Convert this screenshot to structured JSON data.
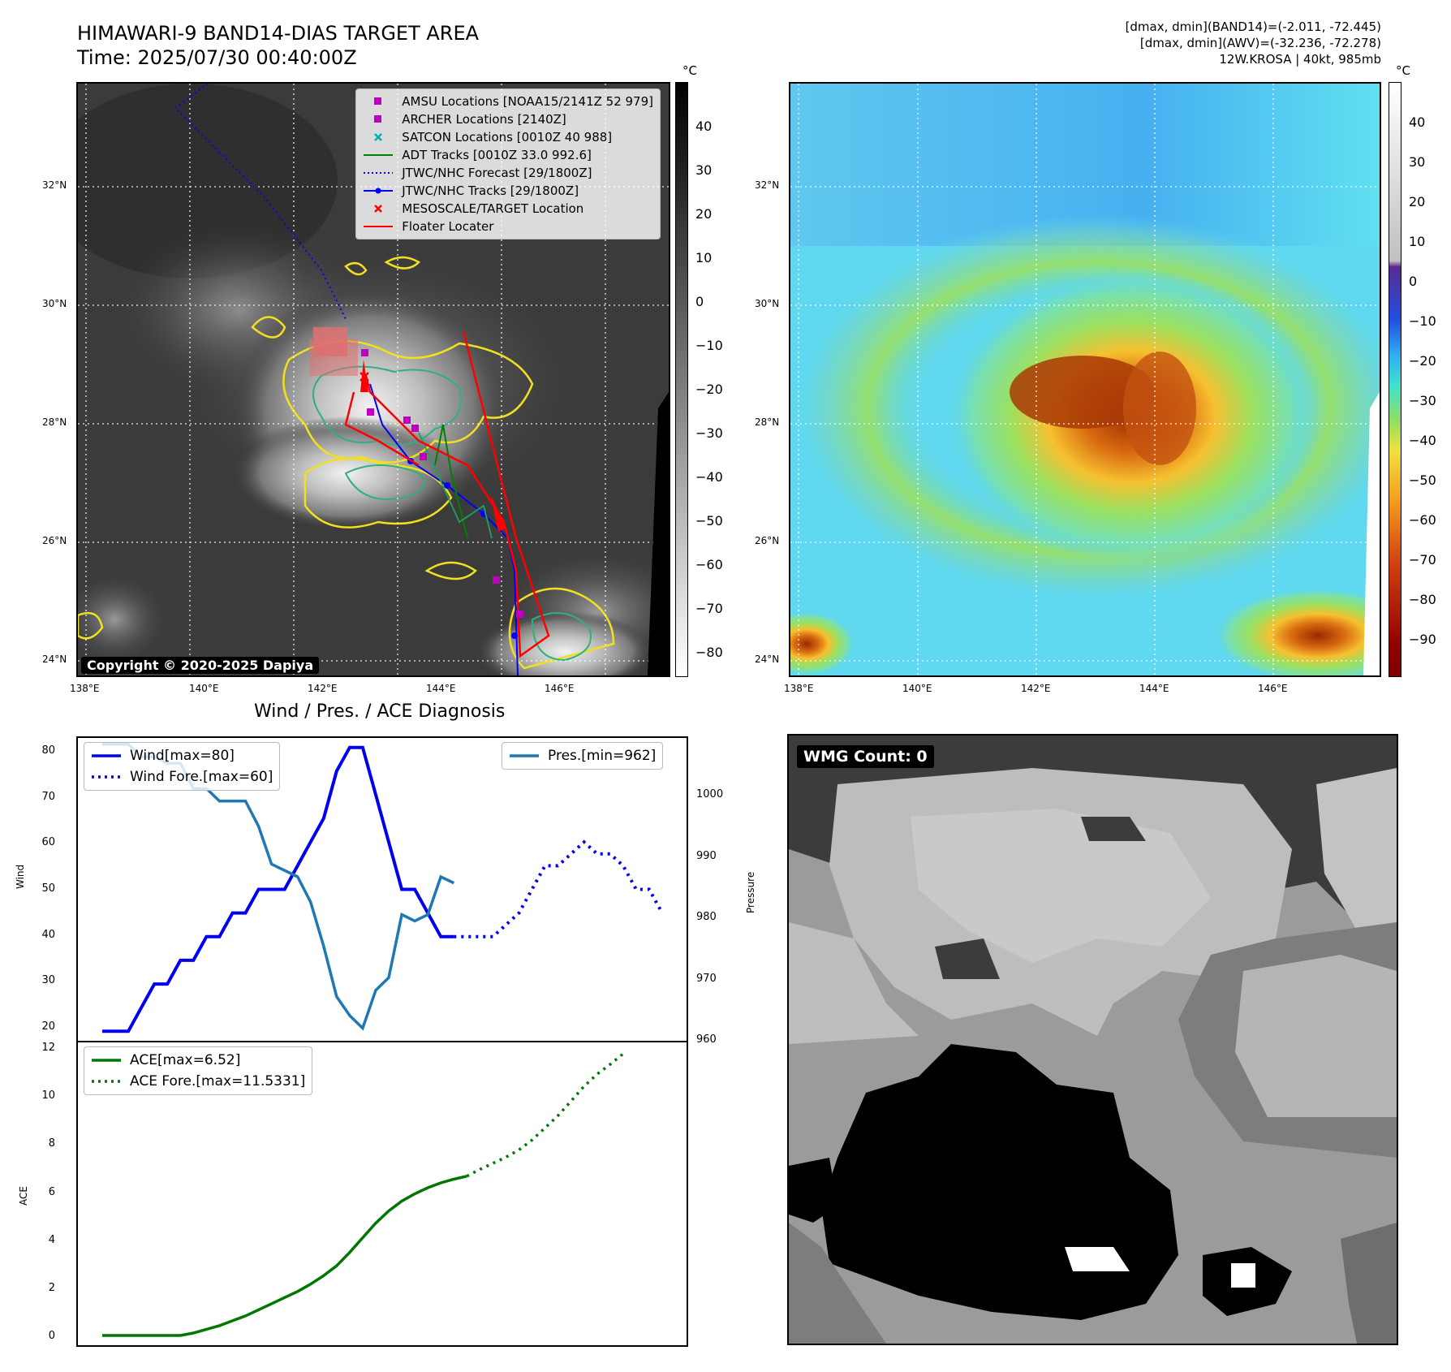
{
  "header": {
    "title_line1": "HIMAWARI-9 BAND14-DIAS TARGET AREA",
    "title_line2": "Time: 2025/07/30 00:40:00Z",
    "info_line1": "[dmax, dmin](BAND14)=(-2.011, -72.445)",
    "info_line2": "[dmax, dmin](AWV)=(-32.236, -72.278)",
    "info_line3": "12W.KROSA | 40kt, 985mb"
  },
  "map": {
    "lon_ticks": [
      "138°E",
      "140°E",
      "142°E",
      "144°E",
      "146°E"
    ],
    "lat_ticks": [
      "32°N",
      "30°N",
      "28°N",
      "26°N",
      "24°N"
    ],
    "copyright": "Copyright © 2020-2025 Dapiya",
    "legend": [
      {
        "label": "AMSU Locations [NOAA15/2141Z 52 979]",
        "symbol": "square",
        "color": "#c000c0"
      },
      {
        "label": "ARCHER Locations [2140Z]",
        "symbol": "square",
        "color": "#c000c0"
      },
      {
        "label": "SATCON Locations [0010Z 40 988]",
        "symbol": "x",
        "color": "#00b0b0"
      },
      {
        "label": "ADT Tracks [0010Z 33.0 992.6]",
        "symbol": "line",
        "color": "#008000"
      },
      {
        "label": "JTWC/NHC Forecast [29/1800Z]",
        "symbol": "dotted",
        "color": "#0000ff"
      },
      {
        "label": "JTWC/NHC Tracks [29/1800Z]",
        "symbol": "line-dot",
        "color": "#0000ff"
      },
      {
        "label": "MESOSCALE/TARGET Location",
        "symbol": "x",
        "color": "#ff0000"
      },
      {
        "label": "Floater Locater",
        "symbol": "line",
        "color": "#ff0000"
      }
    ],
    "left_cbar": {
      "unit": "°C",
      "ticks": [
        "40",
        "30",
        "20",
        "10",
        "0",
        "−10",
        "−20",
        "−30",
        "−40",
        "−50",
        "−60",
        "−70",
        "−80"
      ]
    },
    "right_cbar": {
      "unit": "°C",
      "ticks": [
        "40",
        "30",
        "20",
        "10",
        "0",
        "−10",
        "−20",
        "−30",
        "−40",
        "−50",
        "−60",
        "−70",
        "−80",
        "−90"
      ]
    }
  },
  "diagnosis": {
    "title": "Wind / Pres. / ACE Diagnosis",
    "wind_ylabel": "Wind",
    "pres_ylabel": "Pressure",
    "ace_ylabel": "ACE",
    "wind_ticks": [
      "80",
      "70",
      "60",
      "50",
      "40",
      "30",
      "20"
    ],
    "pres_ticks": [
      "1000",
      "990",
      "980",
      "970",
      "960"
    ],
    "ace_ticks": [
      "12",
      "10",
      "8",
      "6",
      "4",
      "2",
      "0"
    ],
    "wind_legend_1": "Wind[max=80]",
    "wind_legend_2": "Wind Fore.[max=60]",
    "pres_legend": "Pres.[min=962]",
    "ace_legend_1": "ACE[max=6.52]",
    "ace_legend_2": "ACE Fore.[max=11.5331]"
  },
  "wmg": {
    "label": "WMG Count: 0"
  },
  "colors": {
    "wind": "#0000ee",
    "pres": "#1f77b4",
    "ace": "#007700",
    "amsu": "#c000c0",
    "floater": "#ff0000"
  },
  "chart_data": [
    {
      "type": "line",
      "title": "Wind / Pres. / ACE Diagnosis",
      "ylabel": "Wind",
      "ylim": [
        18,
        82
      ],
      "series": [
        {
          "name": "Wind[max=80]",
          "values": [
            20,
            20,
            20,
            25,
            30,
            30,
            35,
            35,
            40,
            40,
            45,
            45,
            50,
            50,
            50,
            55,
            60,
            65,
            75,
            80,
            80,
            70,
            60,
            50,
            50,
            45,
            40,
            40
          ]
        },
        {
          "name": "Wind Fore.[max=60]",
          "start_index": 27,
          "values": [
            40,
            40,
            40,
            40,
            42.5,
            45,
            50,
            55,
            55,
            57.5,
            60,
            57.5,
            57.5,
            55,
            50,
            50,
            45
          ]
        }
      ]
    },
    {
      "type": "line",
      "ylabel": "Pressure",
      "ylim": [
        960,
        1008
      ],
      "series": [
        {
          "name": "Pres.[min=962]",
          "values": [
            1007,
            1007,
            1007,
            1005,
            1005,
            1004,
            1004,
            1000,
            1000,
            998,
            998,
            998,
            994,
            988,
            987,
            986,
            982,
            975,
            967,
            964,
            962,
            968,
            970,
            980,
            979,
            980,
            986,
            985
          ]
        }
      ]
    },
    {
      "type": "line",
      "ylabel": "ACE",
      "ylim": [
        -0.4,
        12
      ],
      "series": [
        {
          "name": "ACE[max=6.52]",
          "values": [
            0,
            0,
            0,
            0,
            0,
            0,
            0,
            0.1,
            0.25,
            0.4,
            0.6,
            0.8,
            1.05,
            1.3,
            1.55,
            1.8,
            2.1,
            2.45,
            2.85,
            3.4,
            4.0,
            4.6,
            5.1,
            5.5,
            5.8,
            6.05,
            6.25,
            6.4,
            6.52
          ]
        },
        {
          "name": "ACE Fore.[max=11.5331]",
          "start_index": 28,
          "values": [
            6.52,
            6.8,
            7.05,
            7.3,
            7.6,
            8.0,
            8.5,
            9.0,
            9.6,
            10.2,
            10.7,
            11.1,
            11.5331
          ]
        }
      ]
    }
  ]
}
